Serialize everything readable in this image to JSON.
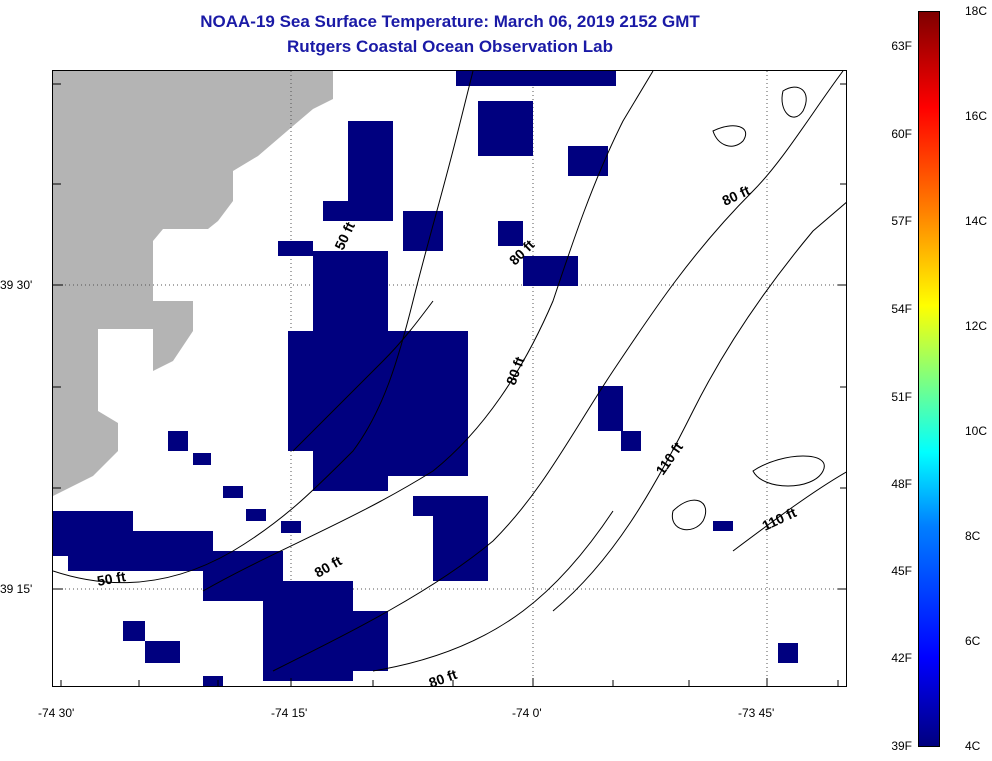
{
  "title": "NOAA-19 Sea Surface Temperature:  March 06, 2019 2152 GMT",
  "subtitle": "Rutgers Coastal Ocean Observation Lab",
  "lat_labels": [
    "39 30'",
    "39 15'"
  ],
  "lon_labels": [
    "-74 30'",
    "-74 15'",
    "-74 0'",
    "-73 45'"
  ],
  "isobath_labels": [
    "50 ft",
    "80 ft",
    "80 ft",
    "80 ft",
    "110 ft",
    "110 ft",
    "50 ft",
    "80 ft",
    "80 ft"
  ],
  "colorbar": {
    "fahrenheit": [
      "63F",
      "60F",
      "57F",
      "54F",
      "51F",
      "48F",
      "45F",
      "42F",
      "39F"
    ],
    "celsius": [
      "18C",
      "16C",
      "14C",
      "12C",
      "10C",
      "8C",
      "6C",
      "4C"
    ]
  },
  "colors": {
    "title": "#1a1aa6",
    "land": "#b4b4b4",
    "sst_cold": "#00007f"
  }
}
